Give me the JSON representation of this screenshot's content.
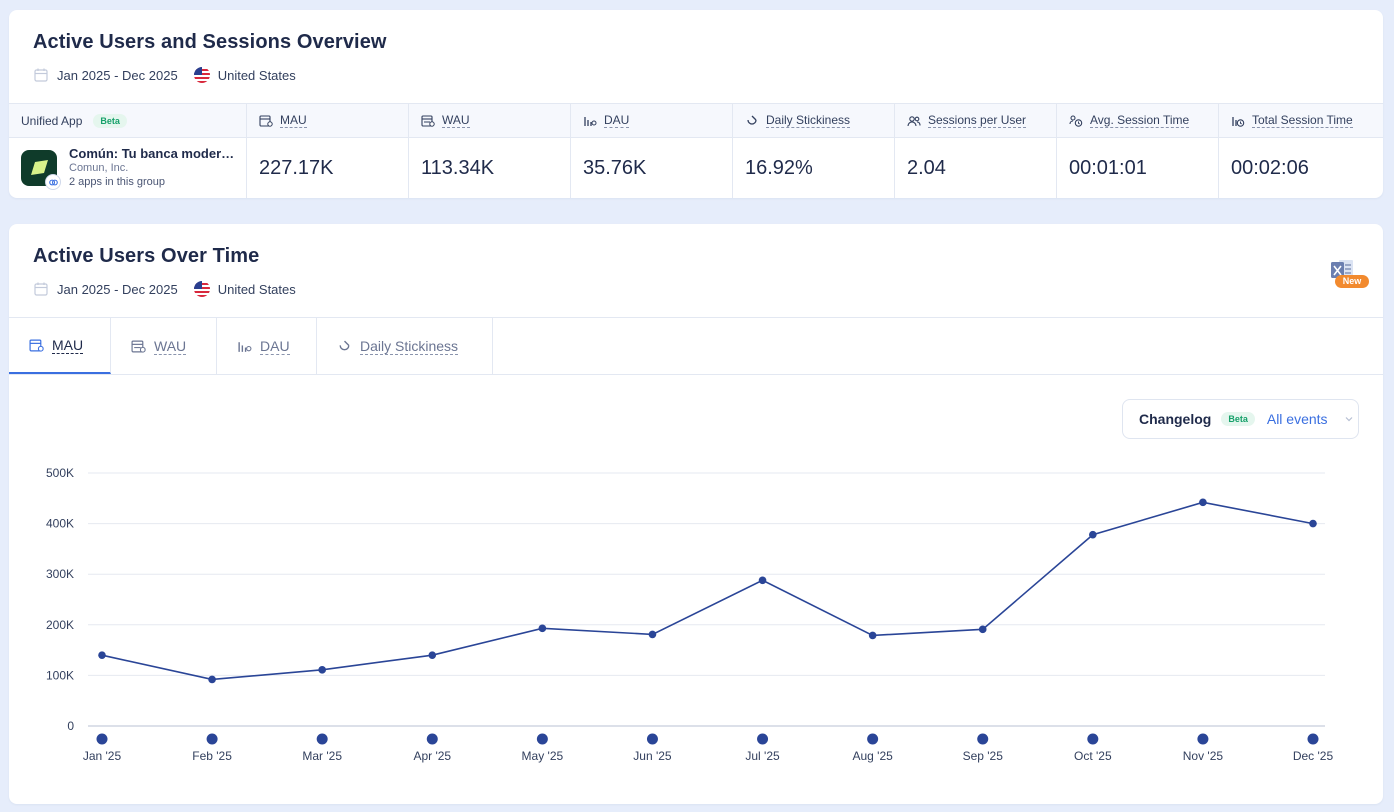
{
  "overview": {
    "title": "Active Users and Sessions Overview",
    "date_range": "Jan 2025 - Dec 2025",
    "country": "United States",
    "headers": {
      "app": "Unified App",
      "beta": "Beta",
      "mau": "MAU",
      "wau": "WAU",
      "dau": "DAU",
      "stickiness": "Daily Stickiness",
      "sessions_per_user": "Sessions per User",
      "avg_session": "Avg. Session Time",
      "total_session": "Total Session Time"
    },
    "app": {
      "name": "Común: Tu banca moder…",
      "company": "Comun, Inc.",
      "group": "2 apps in this group"
    },
    "values": {
      "mau": "227.17K",
      "wau": "113.34K",
      "dau": "35.76K",
      "stickiness": "16.92%",
      "sessions_per_user": "2.04",
      "avg_session": "00:01:01",
      "total_session": "00:02:06"
    }
  },
  "chart_section": {
    "title": "Active Users Over Time",
    "date_range": "Jan 2025 - Dec 2025",
    "country": "United States",
    "excel_badge": "New",
    "tabs": [
      "MAU",
      "WAU",
      "DAU",
      "Daily Stickiness"
    ],
    "active_tab": "MAU",
    "changelog": {
      "label": "Changelog",
      "beta": "Beta",
      "value": "All events"
    }
  },
  "colors": {
    "accent": "#3a6fe0",
    "line": "#2a4597",
    "beta_green": "#16a06a",
    "new_orange": "#f28a2e"
  },
  "chart_data": {
    "type": "line",
    "categories": [
      "Jan '25",
      "Feb '25",
      "Mar '25",
      "Apr '25",
      "May '25",
      "Jun '25",
      "Jul '25",
      "Aug '25",
      "Sep '25",
      "Oct '25",
      "Nov '25",
      "Dec '25"
    ],
    "series": [
      {
        "values": [
          140000,
          92000,
          111000,
          140000,
          193000,
          181000,
          288000,
          179000,
          191000,
          378000,
          442000,
          400000
        ]
      }
    ],
    "yticks": [
      "0",
      "100K",
      "200K",
      "300K",
      "400K",
      "500K"
    ],
    "ylim": [
      0,
      500000
    ],
    "grid": true,
    "legend": "none"
  }
}
